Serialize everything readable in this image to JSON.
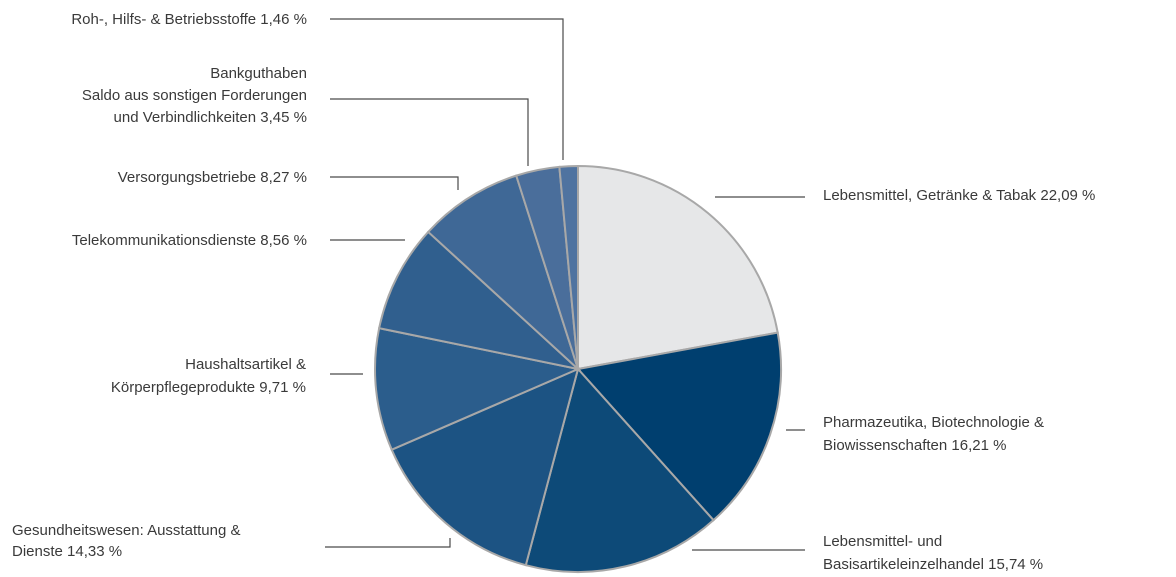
{
  "chart_data": {
    "type": "pie",
    "slices": [
      {
        "name": "Lebensmittel, Getränke & Tabak",
        "value": 22.09,
        "label": "Lebensmittel, Getränke & Tabak 22,09 %",
        "color": "#e6e7e8"
      },
      {
        "name": "Pharmazeutika, Biotechnologie & Biowissenschaften",
        "value": 16.21,
        "label_lines": [
          "Pharmazeutika, Biotechnologie &",
          "Biowissenschaften 16,21 %"
        ],
        "color": "#003f6f"
      },
      {
        "name": "Lebensmittel- und Basisartikeleinzelhandel",
        "value": 15.74,
        "label_lines": [
          "Lebensmittel- und",
          "Basisartikeleinzelhandel 15,74 %"
        ],
        "color": "#0d4a78"
      },
      {
        "name": "Gesundheitswesen: Ausstattung & Dienste",
        "value": 14.33,
        "label_lines": [
          "Gesundheitswesen: Ausstattung &",
          "Dienste 14,33 %"
        ],
        "color": "#1c5383"
      },
      {
        "name": "Haushaltsartikel & Körperpflegeprodukte",
        "value": 9.71,
        "label_lines": [
          "Haushaltsartikel &",
          "Körperpflegeprodukte 9,71 %"
        ],
        "color": "#2b5d8c"
      },
      {
        "name": "Telekommunikationsdienste",
        "value": 8.56,
        "label": "Telekommunikationsdienste 8,56 %",
        "color": "#305f8e"
      },
      {
        "name": "Versorgungsbetriebe",
        "value": 8.27,
        "label": "Versorgungsbetriebe 8,27 %",
        "color": "#3f6896"
      },
      {
        "name": "Bankguthaben Saldo aus sonstigen Forderungen und Verbindlichkeiten",
        "value": 3.45,
        "label_lines": [
          "Bankguthaben",
          "Saldo aus sonstigen Forderungen",
          "und Verbindlichkeiten 3,45 %"
        ],
        "color": "#4a6e9b"
      },
      {
        "name": "Roh-, Hilfs- & Betriebsstoffe",
        "value": 1.46,
        "label": "Roh-, Hilfs- & Betriebsstoffe 1,46 %",
        "color": "#4f73a0"
      }
    ]
  }
}
